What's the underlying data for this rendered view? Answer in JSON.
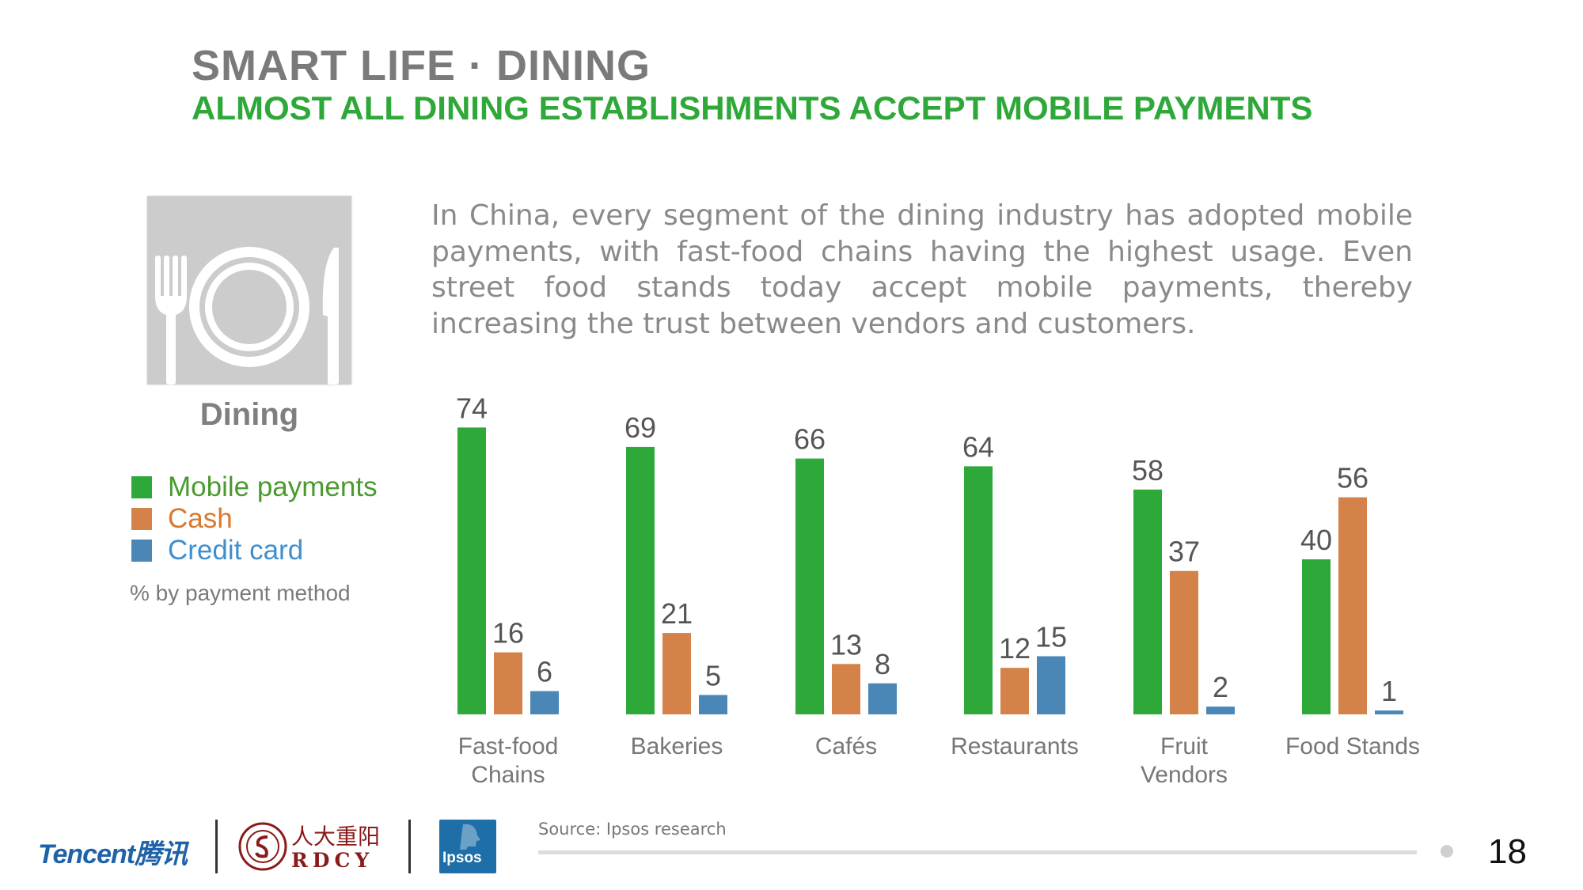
{
  "header": {
    "title": "SMART LIFE · DINING",
    "subtitle": "ALMOST ALL DINING ESTABLISHMENTS ACCEPT MOBILE PAYMENTS"
  },
  "sidebar": {
    "icon": "fork-plate-knife-icon",
    "icon_label": "Dining",
    "legend": [
      {
        "label": "Mobile payments",
        "color": "#2fa83a"
      },
      {
        "label": "Cash",
        "color": "#d4824a"
      },
      {
        "label": "Credit card",
        "color": "#4a87b7"
      }
    ],
    "unit_note": "% by payment method"
  },
  "intro_text": "In China, every segment of the dining industry has adopted mobile payments, with fast-food chains having the highest usage. Even street food stands today accept mobile payments, thereby increasing the trust between vendors and customers.",
  "chart_data": {
    "type": "bar",
    "title": "",
    "xlabel": "",
    "ylabel": "% by payment method",
    "ylim": [
      0,
      80
    ],
    "grid": false,
    "categories": [
      "Fast-food\nChains",
      "Bakeries",
      "Cafés",
      "Restaurants",
      "Fruit\nVendors",
      "Food Stands"
    ],
    "series": [
      {
        "name": "Mobile payments",
        "color": "#2fa83a",
        "values": [
          74,
          69,
          66,
          64,
          58,
          40
        ]
      },
      {
        "name": "Cash",
        "color": "#d4824a",
        "values": [
          16,
          21,
          13,
          12,
          37,
          56
        ]
      },
      {
        "name": "Credit card",
        "color": "#4a87b7",
        "values": [
          6,
          5,
          8,
          15,
          2,
          1
        ]
      }
    ]
  },
  "footer": {
    "source": "Source: Ipsos research",
    "page_number": "18",
    "logos": {
      "tencent": "Tencent腾讯",
      "rdcy_chinese": "人大重阳",
      "rdcy": "RDCY",
      "ipsos": "Ipsos"
    }
  }
}
